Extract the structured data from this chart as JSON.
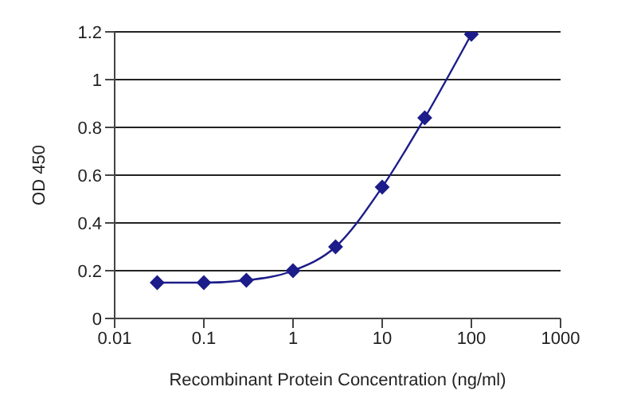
{
  "chart_data": {
    "type": "line",
    "xlabel": "Recombinant Protein Concentration (ng/ml)",
    "ylabel": "OD 450",
    "x": [
      0.03,
      0.1,
      0.3,
      1,
      3,
      10,
      30,
      100
    ],
    "series": [
      {
        "color": "#1c1c8a",
        "values": [
          0.15,
          0.15,
          0.16,
          0.2,
          0.3,
          0.55,
          0.84,
          1.19
        ]
      }
    ],
    "log": "x",
    "xlim": [
      0.01,
      1000
    ],
    "xticks": [
      0.01,
      0.1,
      1,
      10,
      100,
      1000
    ],
    "ylim": [
      0,
      1.2
    ],
    "yticks": [
      0,
      0.2,
      0.4,
      0.6,
      0.8,
      1,
      1.2
    ],
    "grid": "y",
    "marker": "diamond",
    "line_style": "solid",
    "legend": false
  }
}
